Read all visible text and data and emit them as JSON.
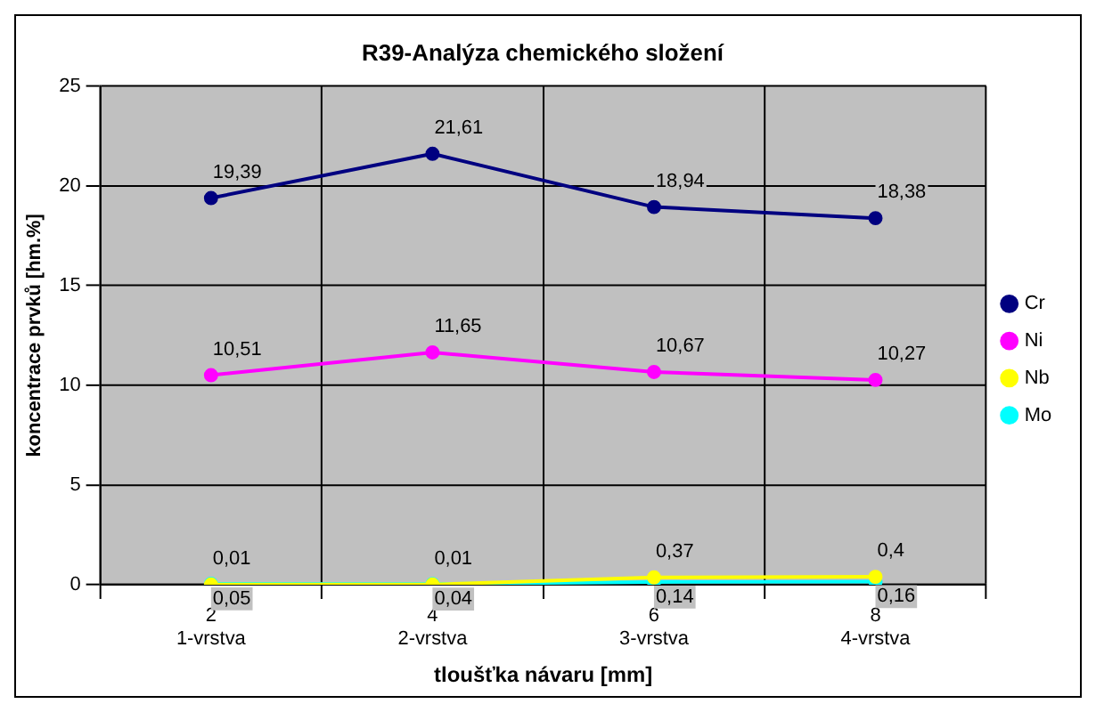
{
  "chart_data": {
    "type": "line",
    "title": "R39-Analýza chemického složení",
    "xlabel": "tloušťka návaru [mm]",
    "ylabel": "koncentrace prvků [hm.%]",
    "categories": [
      "2\n1-vrstva",
      "4\n2-vrstva",
      "6\n3-vrstva",
      "8\n4-vrstva"
    ],
    "series": [
      {
        "name": "Cr",
        "color": "#000080",
        "values": [
          19.39,
          21.61,
          18.94,
          18.38
        ],
        "value_labels": [
          "19,39",
          "21,61",
          "18,94",
          "18,38"
        ]
      },
      {
        "name": "Ni",
        "color": "#ff00ff",
        "values": [
          10.51,
          11.65,
          10.67,
          10.27
        ],
        "value_labels": [
          "10,51",
          "11,65",
          "10,67",
          "10,27"
        ]
      },
      {
        "name": "Nb",
        "color": "#ffff00",
        "values": [
          0.01,
          0.01,
          0.37,
          0.4
        ],
        "value_labels": [
          "0,01",
          "0,01",
          "0,37",
          "0,4"
        ]
      },
      {
        "name": "Mo",
        "color": "#00ffff",
        "values": [
          0.05,
          0.04,
          0.14,
          0.16
        ],
        "value_labels": [
          "0,05",
          "0,04",
          "0,14",
          "0,16"
        ]
      }
    ],
    "ylim": [
      0,
      25
    ],
    "yticks": [
      0,
      5,
      10,
      15,
      20,
      25
    ],
    "grid": true,
    "legend": "right",
    "marker": "circle",
    "line_style": "solid"
  }
}
